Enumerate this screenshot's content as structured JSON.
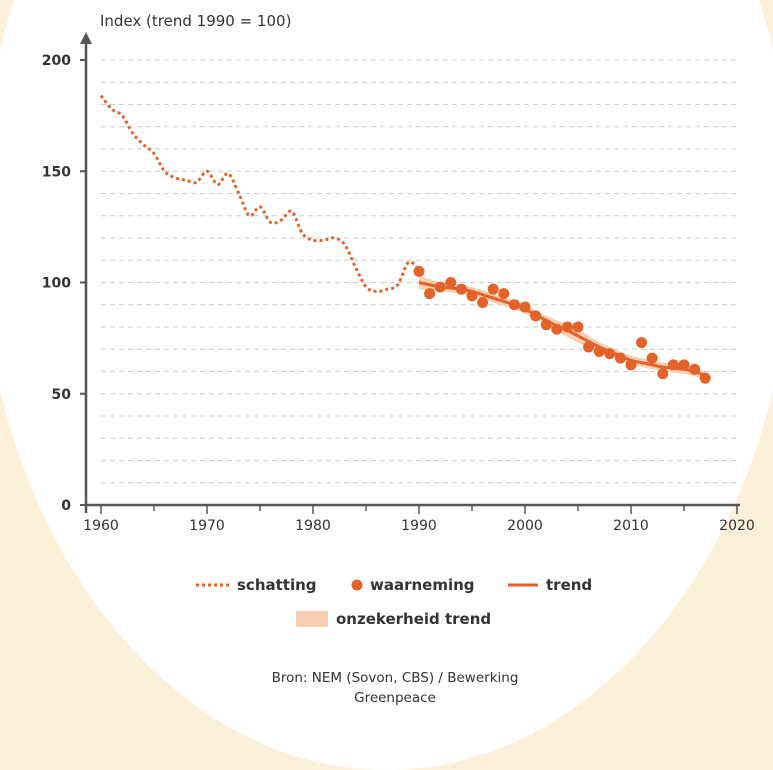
{
  "colors": {
    "accent": "#e2622a",
    "band": "#f9cfb2",
    "axis": "#555555",
    "grid": "#cccccc",
    "background": "#fdf0da"
  },
  "legend": {
    "schatting": "schatting",
    "waarneming": "waarneming",
    "trend": "trend",
    "onzekerheid": "onzekerheid trend"
  },
  "source": {
    "line1": "Bron: NEM (Sovon, CBS) / Bewerking",
    "line2": "Greenpeace"
  },
  "chart_data": {
    "type": "line",
    "ylabel": "Index (trend 1990 = 100)",
    "xlim": [
      1958.5,
      2020
    ],
    "ylim": [
      0,
      200
    ],
    "x_ticks": [
      1960,
      1970,
      1980,
      1990,
      2000,
      2010,
      2020
    ],
    "y_ticks": [
      0,
      50,
      100,
      150,
      200
    ],
    "grid": true,
    "legend_position": "bottom",
    "series": [
      {
        "name": "schatting",
        "style": "dotted-line",
        "x": [
          1960,
          1961,
          1962,
          1963,
          1964,
          1965,
          1966,
          1967,
          1968,
          1969,
          1970,
          1971,
          1972,
          1973,
          1974,
          1975,
          1976,
          1977,
          1978,
          1979,
          1980,
          1981,
          1982,
          1983,
          1984,
          1985,
          1986,
          1987,
          1988,
          1989,
          1990
        ],
        "y": [
          184,
          178,
          175,
          167,
          162,
          158,
          150,
          147,
          146,
          145,
          150,
          144,
          149,
          140,
          130,
          134,
          127,
          128,
          132,
          122,
          119,
          119,
          120,
          117,
          107,
          98,
          96,
          97,
          99,
          109,
          106
        ]
      },
      {
        "name": "waarneming",
        "style": "points",
        "x": [
          1990,
          1991,
          1992,
          1993,
          1994,
          1995,
          1996,
          1997,
          1998,
          1999,
          2000,
          2001,
          2002,
          2003,
          2004,
          2005,
          2006,
          2007,
          2008,
          2009,
          2010,
          2011,
          2012,
          2013,
          2014,
          2015,
          2016,
          2017
        ],
        "y": [
          105,
          95,
          98,
          100,
          97,
          94,
          91,
          97,
          95,
          90,
          89,
          85,
          81,
          79,
          80,
          80,
          71,
          69,
          68,
          66,
          63,
          73,
          66,
          59,
          63,
          63,
          61,
          57
        ]
      },
      {
        "name": "trend",
        "style": "line",
        "x": [
          1990,
          1991,
          1992,
          1993,
          1994,
          1995,
          1996,
          1997,
          1998,
          1999,
          2000,
          2001,
          2002,
          2003,
          2004,
          2005,
          2006,
          2007,
          2008,
          2009,
          2010,
          2011,
          2012,
          2013,
          2014,
          2015,
          2016,
          2017
        ],
        "y": [
          100,
          99,
          98,
          97.5,
          97,
          96,
          94.5,
          93,
          91.5,
          90,
          88,
          85.5,
          83,
          80.5,
          78.5,
          76,
          73.5,
          71,
          69,
          67,
          65,
          64,
          63,
          62,
          61.5,
          61,
          60,
          58
        ]
      },
      {
        "name": "onzekerheid trend",
        "style": "band",
        "x": [
          1990,
          1991,
          1992,
          1993,
          1994,
          1995,
          1996,
          1997,
          1998,
          1999,
          2000,
          2001,
          2002,
          2003,
          2004,
          2005,
          2006,
          2007,
          2008,
          2009,
          2010,
          2011,
          2012,
          2013,
          2014,
          2015,
          2016,
          2017
        ],
        "lower": [
          97,
          96.5,
          96,
          95.5,
          95,
          94,
          92.5,
          91,
          89.5,
          88,
          86,
          83.5,
          81,
          78,
          75.5,
          73,
          71,
          69,
          67,
          65,
          63,
          62,
          61,
          60,
          59.5,
          59,
          58,
          56
        ],
        "upper": [
          103,
          101.5,
          100,
          99.5,
          99,
          98,
          96.5,
          95,
          93.5,
          92,
          90,
          87.5,
          85,
          83,
          81.5,
          79,
          76,
          73,
          71,
          69,
          67,
          66,
          65,
          64,
          63.5,
          63,
          62,
          60
        ]
      }
    ]
  }
}
